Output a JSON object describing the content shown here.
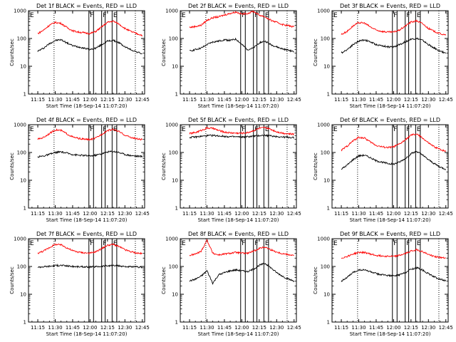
{
  "figure": {
    "shared": {
      "xlabel": "Start Time (18-Sep-14 11:07:20)",
      "ylabel": "Counts/sec",
      "x_tick_labels": [
        "11:15",
        "11:30",
        "11:45",
        "12:00",
        "12:15",
        "12:30",
        "12:45"
      ],
      "y_tick_labels": [
        "1",
        "10",
        "100",
        "1000"
      ],
      "flag_labels": [
        "E",
        "F",
        "F",
        "E"
      ],
      "colors": {
        "events": "#000000",
        "lld": "#ff0000",
        "axes": "#000000"
      }
    }
  },
  "chart_data": [
    {
      "type": "line",
      "title": "Det 1f BLACK = Events, RED = LLD",
      "xlabel": "Start Time (18-Sep-14 11:07:20)",
      "ylabel": "Counts/sec",
      "x_unit": "time of day",
      "x": [
        "11:15",
        "11:20",
        "11:25",
        "11:30",
        "11:35",
        "11:40",
        "11:45",
        "11:50",
        "11:55",
        "12:00",
        "12:05",
        "12:10",
        "12:15",
        "12:20",
        "12:25",
        "12:30",
        "12:35",
        "12:40",
        "12:45"
      ],
      "y_scale": "log",
      "ylim": [
        1,
        1000
      ],
      "series": [
        {
          "name": "BLACK = Events",
          "color": "#000000",
          "values": [
            35,
            45,
            65,
            85,
            90,
            70,
            55,
            50,
            45,
            40,
            45,
            60,
            80,
            85,
            70,
            50,
            40,
            33,
            28
          ]
        },
        {
          "name": "RED = LLD",
          "color": "#ff0000",
          "values": [
            150,
            200,
            300,
            380,
            350,
            250,
            190,
            170,
            160,
            150,
            180,
            260,
            380,
            420,
            330,
            230,
            180,
            150,
            130
          ]
        }
      ]
    },
    {
      "type": "line",
      "title": "Det 2f BLACK = Events, RED = LLD",
      "xlabel": "Start Time (18-Sep-14 11:07:20)",
      "ylabel": "Counts/sec",
      "x_unit": "time of day",
      "x": [
        "11:15",
        "11:20",
        "11:25",
        "11:30",
        "11:35",
        "11:40",
        "11:45",
        "11:50",
        "11:55",
        "12:00",
        "12:05",
        "12:10",
        "12:15",
        "12:20",
        "12:25",
        "12:30",
        "12:35",
        "12:40",
        "12:45"
      ],
      "y_scale": "log",
      "ylim": [
        1,
        1000
      ],
      "series": [
        {
          "name": "BLACK = Events",
          "color": "#000000",
          "values": [
            35,
            40,
            45,
            60,
            75,
            80,
            90,
            85,
            95,
            60,
            40,
            45,
            70,
            80,
            60,
            50,
            42,
            38,
            33
          ]
        },
        {
          "name": "RED = LLD",
          "color": "#ff0000",
          "values": [
            250,
            270,
            300,
            450,
            560,
            600,
            700,
            800,
            900,
            750,
            800,
            950,
            700,
            600,
            450,
            380,
            320,
            290,
            260
          ]
        }
      ]
    },
    {
      "type": "line",
      "title": "Det 3f BLACK = Events, RED = LLD",
      "xlabel": "Start Time (18-Sep-14 11:07:20)",
      "ylabel": "Counts/sec",
      "x_unit": "time of day",
      "x": [
        "11:15",
        "11:20",
        "11:25",
        "11:30",
        "11:35",
        "11:40",
        "11:45",
        "11:50",
        "11:55",
        "12:00",
        "12:05",
        "12:10",
        "12:15",
        "12:20",
        "12:25",
        "12:30",
        "12:35",
        "12:40",
        "12:45"
      ],
      "y_scale": "log",
      "ylim": [
        1,
        1000
      ],
      "series": [
        {
          "name": "BLACK = Events",
          "color": "#000000",
          "values": [
            30,
            40,
            60,
            80,
            90,
            75,
            60,
            55,
            50,
            50,
            60,
            75,
            95,
            100,
            85,
            60,
            45,
            35,
            30
          ]
        },
        {
          "name": "RED = LLD",
          "color": "#ff0000",
          "values": [
            140,
            180,
            280,
            370,
            360,
            260,
            200,
            180,
            170,
            170,
            200,
            280,
            390,
            430,
            340,
            230,
            180,
            150,
            130
          ]
        }
      ]
    },
    {
      "type": "line",
      "title": "Det 4f BLACK = Events, RED = LLD",
      "xlabel": "Start Time (18-Sep-14 11:07:20)",
      "ylabel": "Counts/sec",
      "x_unit": "time of day",
      "x": [
        "11:15",
        "11:20",
        "11:25",
        "11:30",
        "11:35",
        "11:40",
        "11:45",
        "11:50",
        "11:55",
        "12:00",
        "12:05",
        "12:10",
        "12:15",
        "12:20",
        "12:25",
        "12:30",
        "12:35",
        "12:40",
        "12:45"
      ],
      "y_scale": "log",
      "ylim": [
        1,
        1000
      ],
      "series": [
        {
          "name": "BLACK = Events",
          "color": "#000000",
          "values": [
            70,
            75,
            85,
            100,
            105,
            95,
            85,
            80,
            78,
            75,
            80,
            90,
            105,
            110,
            100,
            85,
            78,
            74,
            72
          ]
        },
        {
          "name": "RED = LLD",
          "color": "#ff0000",
          "values": [
            300,
            350,
            480,
            650,
            620,
            470,
            360,
            320,
            300,
            290,
            330,
            450,
            620,
            680,
            560,
            420,
            350,
            310,
            290
          ]
        }
      ]
    },
    {
      "type": "line",
      "title": "Det 5f BLACK = Events, RED = LLD",
      "xlabel": "Start Time (18-Sep-14 11:07:20)",
      "ylabel": "Counts/sec",
      "x_unit": "time of day",
      "x": [
        "11:15",
        "11:20",
        "11:25",
        "11:30",
        "11:35",
        "11:40",
        "11:45",
        "11:50",
        "11:55",
        "12:00",
        "12:05",
        "12:10",
        "12:15",
        "12:20",
        "12:25",
        "12:30",
        "12:35",
        "12:40",
        "12:45"
      ],
      "y_scale": "log",
      "ylim": [
        1,
        1000
      ],
      "series": [
        {
          "name": "BLACK = Events",
          "color": "#000000",
          "values": [
            350,
            360,
            380,
            400,
            410,
            395,
            380,
            370,
            365,
            360,
            370,
            385,
            405,
            410,
            395,
            375,
            360,
            350,
            345
          ]
        },
        {
          "name": "RED = LLD",
          "color": "#ff0000",
          "values": [
            480,
            520,
            620,
            760,
            740,
            620,
            540,
            510,
            500,
            490,
            520,
            610,
            740,
            780,
            680,
            560,
            500,
            470,
            455
          ]
        }
      ]
    },
    {
      "type": "line",
      "title": "Det 6f BLACK = Events, RED = LLD",
      "xlabel": "Start Time (18-Sep-14 11:07:20)",
      "ylabel": "Counts/sec",
      "x_unit": "time of day",
      "x": [
        "11:15",
        "11:20",
        "11:25",
        "11:30",
        "11:35",
        "11:40",
        "11:45",
        "11:50",
        "11:55",
        "12:00",
        "12:05",
        "12:10",
        "12:15",
        "12:20",
        "12:25",
        "12:30",
        "12:35",
        "12:40",
        "12:45"
      ],
      "y_scale": "log",
      "ylim": [
        1,
        1000
      ],
      "series": [
        {
          "name": "BLACK = Events",
          "color": "#000000",
          "values": [
            25,
            35,
            55,
            75,
            80,
            65,
            50,
            45,
            40,
            38,
            45,
            60,
            90,
            110,
            80,
            55,
            40,
            30,
            25
          ]
        },
        {
          "name": "RED = LLD",
          "color": "#ff0000",
          "values": [
            120,
            170,
            260,
            350,
            330,
            240,
            180,
            160,
            150,
            160,
            200,
            280,
            420,
            460,
            330,
            220,
            160,
            130,
            110
          ]
        }
      ]
    },
    {
      "type": "line",
      "title": "Det 7f BLACK = Events, RED = LLD",
      "xlabel": "Start Time (18-Sep-14 11:07:20)",
      "ylabel": "Counts/sec",
      "x_unit": "time of day",
      "x": [
        "11:15",
        "11:20",
        "11:25",
        "11:30",
        "11:35",
        "11:40",
        "11:45",
        "11:50",
        "11:55",
        "12:00",
        "12:05",
        "12:10",
        "12:15",
        "12:20",
        "12:25",
        "12:30",
        "12:35",
        "12:40",
        "12:45"
      ],
      "y_scale": "log",
      "ylim": [
        1,
        1000
      ],
      "series": [
        {
          "name": "BLACK = Events",
          "color": "#000000",
          "values": [
            95,
            98,
            102,
            108,
            110,
            105,
            100,
            98,
            97,
            96,
            98,
            102,
            106,
            108,
            104,
            100,
            97,
            95,
            94
          ]
        },
        {
          "name": "RED = LLD",
          "color": "#ff0000",
          "values": [
            300,
            360,
            480,
            620,
            600,
            470,
            370,
            330,
            310,
            300,
            340,
            440,
            580,
            620,
            520,
            400,
            340,
            305,
            290
          ]
        }
      ]
    },
    {
      "type": "line",
      "title": "Det 8f BLACK = Events, RED = LLD",
      "xlabel": "Start Time (18-Sep-14 11:07:20)",
      "ylabel": "Counts/sec",
      "x_unit": "time of day",
      "x": [
        "11:15",
        "11:20",
        "11:25",
        "11:30",
        "11:35",
        "11:40",
        "11:45",
        "11:50",
        "11:55",
        "12:00",
        "12:05",
        "12:10",
        "12:15",
        "12:20",
        "12:25",
        "12:30",
        "12:35",
        "12:40",
        "12:45"
      ],
      "y_scale": "log",
      "ylim": [
        1,
        1000
      ],
      "series": [
        {
          "name": "BLACK = Events",
          "color": "#000000",
          "values": [
            30,
            35,
            45,
            70,
            25,
            50,
            60,
            70,
            75,
            70,
            65,
            80,
            110,
            130,
            90,
            60,
            45,
            35,
            30
          ]
        },
        {
          "name": "RED = LLD",
          "color": "#ff0000",
          "values": [
            250,
            280,
            350,
            900,
            300,
            260,
            280,
            300,
            320,
            300,
            300,
            350,
            450,
            500,
            400,
            330,
            290,
            270,
            250
          ]
        }
      ]
    },
    {
      "type": "line",
      "title": "Det 9f BLACK = Events, RED = LLD",
      "xlabel": "Start Time (18-Sep-14 11:07:20)",
      "ylabel": "Counts/sec",
      "x_unit": "time of day",
      "x": [
        "11:15",
        "11:20",
        "11:25",
        "11:30",
        "11:35",
        "11:40",
        "11:45",
        "11:50",
        "11:55",
        "12:00",
        "12:05",
        "12:10",
        "12:15",
        "12:20",
        "12:25",
        "12:30",
        "12:35",
        "12:40",
        "12:45"
      ],
      "y_scale": "log",
      "ylim": [
        1,
        1000
      ],
      "series": [
        {
          "name": "BLACK = Events",
          "color": "#000000",
          "values": [
            30,
            40,
            60,
            75,
            75,
            65,
            55,
            50,
            48,
            45,
            50,
            60,
            80,
            90,
            75,
            55,
            42,
            35,
            30
          ]
        },
        {
          "name": "RED = LLD",
          "color": "#ff0000",
          "values": [
            200,
            230,
            280,
            320,
            320,
            280,
            250,
            240,
            235,
            230,
            250,
            290,
            360,
            400,
            340,
            270,
            230,
            210,
            200
          ]
        }
      ]
    }
  ]
}
